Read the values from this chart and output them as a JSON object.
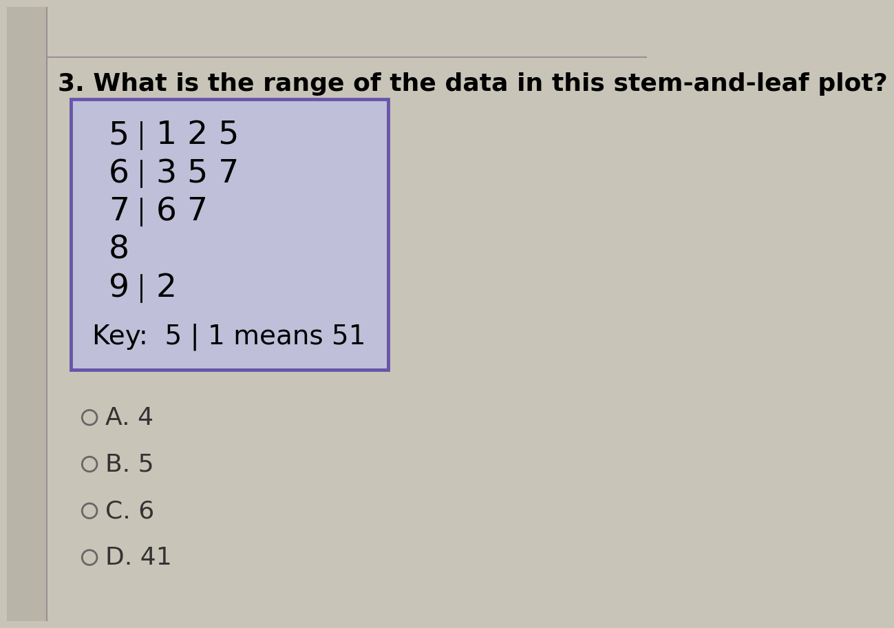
{
  "question": "3. What is the range of the data in this stem-and-leaf plot?",
  "stems": [
    "5",
    "6",
    "7",
    "8",
    "9"
  ],
  "leaves": [
    "1 2 5",
    "3 5 7",
    "6 7",
    "",
    "2"
  ],
  "has_separator": [
    true,
    true,
    true,
    false,
    true
  ],
  "key_text": "Key:  5 | 1 means 51",
  "options": [
    "A. 4",
    "B. 5",
    "C. 6",
    "D. 41"
  ],
  "bg_color": "#bfbfd9",
  "content_bg": "#c8c8dc",
  "outer_bg": "#c8c4b8",
  "left_strip_bg": "#b8b4a8",
  "page_bg": "#c8c4b8",
  "box_border": "#6655aa",
  "question_fontsize": 26,
  "stem_leaf_fontsize": 34,
  "key_fontsize": 28,
  "option_fontsize": 26
}
